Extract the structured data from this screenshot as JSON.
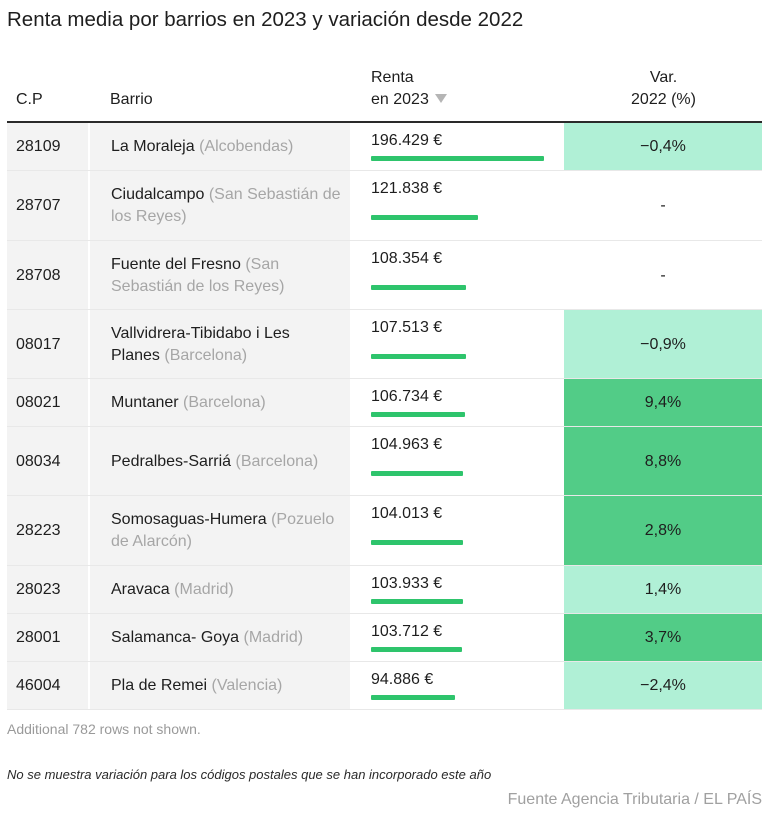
{
  "title": "Renta media por barrios en 2023 y variación desde 2022",
  "headers": {
    "cp": "C.P",
    "barrio": "Barrio",
    "renta_line1": "Renta",
    "renta_line2": "en 2023",
    "var_line1": "Var.",
    "var_line2": "2022 (%)",
    "sort_icon": "sort-descending-triangle-icon"
  },
  "colors": {
    "bar": "#2ec46c",
    "var_strong": "#52cc87",
    "var_light": "#b0f0d6",
    "var_none": "#ffffff"
  },
  "chart_data": {
    "type": "table",
    "title": "Renta media por barrios en 2023 y variación desde 2022",
    "columns": [
      "C.P",
      "Barrio",
      "Renta en 2023",
      "Var. 2022 (%)"
    ],
    "renta_max": 196429,
    "rows": [
      {
        "cp": "28109",
        "barrio": "La Moraleja",
        "city": "(Alcobendas)",
        "renta": 196429,
        "renta_label": "196.429 €",
        "var": -0.4,
        "var_label": "−0,4%",
        "var_level": "light"
      },
      {
        "cp": "28707",
        "barrio": "Ciudalcampo",
        "city": "(San Sebastián de los Reyes)",
        "renta": 121838,
        "renta_label": "121.838 €",
        "var": null,
        "var_label": "-",
        "var_level": "none"
      },
      {
        "cp": "28708",
        "barrio": "Fuente del Fresno",
        "city": "(San Sebastián de los Reyes)",
        "renta": 108354,
        "renta_label": "108.354 €",
        "var": null,
        "var_label": "-",
        "var_level": "none"
      },
      {
        "cp": "08017",
        "barrio": "Vallvidrera-Tibidabo i Les Planes",
        "city": "(Barcelona)",
        "renta": 107513,
        "renta_label": "107.513 €",
        "var": -0.9,
        "var_label": "−0,9%",
        "var_level": "light"
      },
      {
        "cp": "08021",
        "barrio": "Muntaner",
        "city": "(Barcelona)",
        "renta": 106734,
        "renta_label": "106.734 €",
        "var": 9.4,
        "var_label": "9,4%",
        "var_level": "strong"
      },
      {
        "cp": "08034",
        "barrio": "Pedralbes-Sarriá",
        "city": "(Barcelona)",
        "renta": 104963,
        "renta_label": "104.963 €",
        "var": 8.8,
        "var_label": "8,8%",
        "var_level": "strong"
      },
      {
        "cp": "28223",
        "barrio": "Somosaguas-Humera",
        "city": "(Pozuelo de Alarcón)",
        "renta": 104013,
        "renta_label": "104.013 €",
        "var": 2.8,
        "var_label": "2,8%",
        "var_level": "strong"
      },
      {
        "cp": "28023",
        "barrio": "Aravaca",
        "city": "(Madrid)",
        "renta": 103933,
        "renta_label": "103.933 €",
        "var": 1.4,
        "var_label": "1,4%",
        "var_level": "light"
      },
      {
        "cp": "28001",
        "barrio": "Salamanca- Goya",
        "city": "(Madrid)",
        "renta": 103712,
        "renta_label": "103.712 €",
        "var": 3.7,
        "var_label": "3,7%",
        "var_level": "strong"
      },
      {
        "cp": "46004",
        "barrio": "Pla de Remei",
        "city": "(Valencia)",
        "renta": 94886,
        "renta_label": "94.886 €",
        "var": -2.4,
        "var_label": "−2,4%",
        "var_level": "light"
      }
    ]
  },
  "footer": {
    "rows_not_shown": "Additional 782 rows not shown.",
    "note": "No se muestra variación para los códigos postales que se han incorporado este año",
    "source": "Fuente Agencia Tributaria / EL PAÍS"
  }
}
